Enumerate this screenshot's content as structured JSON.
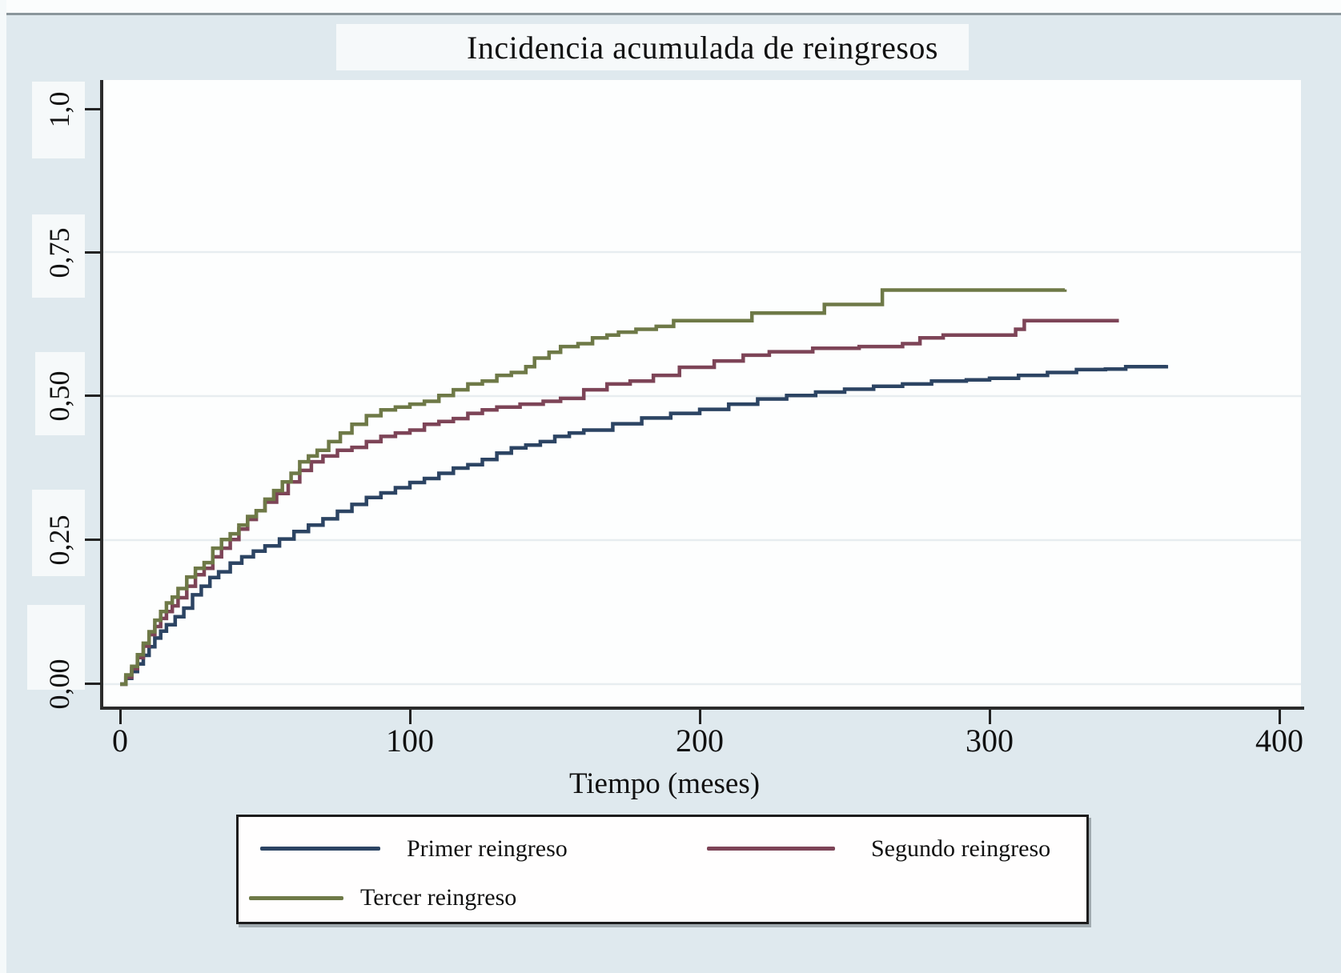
{
  "figure": {
    "title": "Incidencia acumulada de reingresos",
    "x_axis_label": "Tiempo (meses)",
    "legend_entries": [
      "Primer reingreso",
      "Segundo reingreso",
      "Tercer reingreso"
    ]
  },
  "chart_data": {
    "type": "line",
    "subtype": "step-cumulative-incidence",
    "title": "Incidencia acumulada de reingresos",
    "xlabel": "Tiempo (meses)",
    "ylabel": "",
    "xlim": [
      0,
      408
    ],
    "ylim": [
      0,
      1.0
    ],
    "x_ticks": [
      0,
      100,
      200,
      300,
      400
    ],
    "x_tick_labels": [
      "0",
      "100",
      "200",
      "300",
      "400"
    ],
    "y_ticks": [
      0,
      0.25,
      0.5,
      0.75,
      1.0
    ],
    "y_tick_labels": [
      "0,00",
      "0,25",
      "0,50",
      "0,75",
      "1,0"
    ],
    "grid": "horizontal",
    "grid_color": "#e7edf0",
    "background_color": "#dfe9ee",
    "plot_background": "#fdfefe",
    "legend_position": "bottom",
    "series": [
      {
        "name": "Primer reingreso",
        "color": "#2c4463",
        "points": [
          [
            0,
            0
          ],
          [
            2,
            0.01
          ],
          [
            4,
            0.022
          ],
          [
            6,
            0.035
          ],
          [
            8,
            0.05
          ],
          [
            10,
            0.065
          ],
          [
            12,
            0.08
          ],
          [
            14,
            0.092
          ],
          [
            16,
            0.103
          ],
          [
            19,
            0.117
          ],
          [
            22,
            0.132
          ],
          [
            25,
            0.155
          ],
          [
            28,
            0.17
          ],
          [
            31,
            0.185
          ],
          [
            34,
            0.195
          ],
          [
            38,
            0.21
          ],
          [
            42,
            0.221
          ],
          [
            46,
            0.231
          ],
          [
            50,
            0.24
          ],
          [
            55,
            0.252
          ],
          [
            60,
            0.265
          ],
          [
            65,
            0.276
          ],
          [
            70,
            0.287
          ],
          [
            75,
            0.3
          ],
          [
            80,
            0.312
          ],
          [
            85,
            0.324
          ],
          [
            90,
            0.332
          ],
          [
            95,
            0.341
          ],
          [
            100,
            0.35
          ],
          [
            105,
            0.357
          ],
          [
            110,
            0.366
          ],
          [
            115,
            0.375
          ],
          [
            120,
            0.381
          ],
          [
            125,
            0.39
          ],
          [
            130,
            0.401
          ],
          [
            135,
            0.41
          ],
          [
            140,
            0.415
          ],
          [
            145,
            0.421
          ],
          [
            150,
            0.43
          ],
          [
            155,
            0.436
          ],
          [
            160,
            0.441
          ],
          [
            170,
            0.452
          ],
          [
            180,
            0.462
          ],
          [
            190,
            0.47
          ],
          [
            200,
            0.477
          ],
          [
            210,
            0.486
          ],
          [
            220,
            0.495
          ],
          [
            230,
            0.501
          ],
          [
            240,
            0.507
          ],
          [
            250,
            0.512
          ],
          [
            260,
            0.517
          ],
          [
            270,
            0.521
          ],
          [
            280,
            0.526
          ],
          [
            292,
            0.528
          ],
          [
            300,
            0.531
          ],
          [
            310,
            0.536
          ],
          [
            320,
            0.541
          ],
          [
            330,
            0.546
          ],
          [
            340,
            0.547
          ],
          [
            347,
            0.551
          ],
          [
            361,
            0.554
          ]
        ]
      },
      {
        "name": "Segundo reingreso",
        "color": "#7d4457",
        "points": [
          [
            0,
            0
          ],
          [
            2,
            0.012
          ],
          [
            4,
            0.027
          ],
          [
            6,
            0.046
          ],
          [
            8,
            0.066
          ],
          [
            10,
            0.086
          ],
          [
            12,
            0.1
          ],
          [
            14,
            0.114
          ],
          [
            16,
            0.126
          ],
          [
            18,
            0.136
          ],
          [
            20,
            0.15
          ],
          [
            23,
            0.17
          ],
          [
            26,
            0.19
          ],
          [
            29,
            0.201
          ],
          [
            32,
            0.221
          ],
          [
            35,
            0.236
          ],
          [
            38,
            0.251
          ],
          [
            41,
            0.269
          ],
          [
            44,
            0.286
          ],
          [
            47,
            0.301
          ],
          [
            50,
            0.316
          ],
          [
            54,
            0.331
          ],
          [
            58,
            0.351
          ],
          [
            62,
            0.371
          ],
          [
            66,
            0.386
          ],
          [
            70,
            0.396
          ],
          [
            75,
            0.406
          ],
          [
            80,
            0.411
          ],
          [
            85,
            0.421
          ],
          [
            90,
            0.43
          ],
          [
            95,
            0.436
          ],
          [
            100,
            0.441
          ],
          [
            105,
            0.451
          ],
          [
            110,
            0.456
          ],
          [
            115,
            0.461
          ],
          [
            120,
            0.47
          ],
          [
            125,
            0.476
          ],
          [
            130,
            0.481
          ],
          [
            138,
            0.486
          ],
          [
            146,
            0.491
          ],
          [
            152,
            0.496
          ],
          [
            160,
            0.511
          ],
          [
            168,
            0.521
          ],
          [
            176,
            0.526
          ],
          [
            184,
            0.536
          ],
          [
            193,
            0.55
          ],
          [
            205,
            0.561
          ],
          [
            215,
            0.571
          ],
          [
            224,
            0.577
          ],
          [
            239,
            0.583
          ],
          [
            255,
            0.586
          ],
          [
            270,
            0.591
          ],
          [
            276,
            0.601
          ],
          [
            284,
            0.606
          ],
          [
            309,
            0.616
          ],
          [
            312,
            0.631
          ],
          [
            344,
            0.634
          ]
        ]
      },
      {
        "name": "Tercer reingreso",
        "color": "#6e7947",
        "points": [
          [
            0,
            0
          ],
          [
            2,
            0.016
          ],
          [
            4,
            0.031
          ],
          [
            6,
            0.051
          ],
          [
            8,
            0.071
          ],
          [
            10,
            0.091
          ],
          [
            12,
            0.111
          ],
          [
            14,
            0.126
          ],
          [
            16,
            0.141
          ],
          [
            18,
            0.151
          ],
          [
            20,
            0.166
          ],
          [
            23,
            0.186
          ],
          [
            26,
            0.201
          ],
          [
            29,
            0.211
          ],
          [
            32,
            0.236
          ],
          [
            35,
            0.251
          ],
          [
            38,
            0.261
          ],
          [
            41,
            0.276
          ],
          [
            44,
            0.291
          ],
          [
            47,
            0.301
          ],
          [
            50,
            0.321
          ],
          [
            53,
            0.336
          ],
          [
            56,
            0.351
          ],
          [
            59,
            0.366
          ],
          [
            62,
            0.386
          ],
          [
            65,
            0.396
          ],
          [
            68,
            0.406
          ],
          [
            72,
            0.421
          ],
          [
            76,
            0.436
          ],
          [
            80,
            0.451
          ],
          [
            85,
            0.466
          ],
          [
            90,
            0.476
          ],
          [
            95,
            0.481
          ],
          [
            100,
            0.486
          ],
          [
            105,
            0.491
          ],
          [
            110,
            0.501
          ],
          [
            115,
            0.511
          ],
          [
            120,
            0.521
          ],
          [
            125,
            0.526
          ],
          [
            130,
            0.536
          ],
          [
            135,
            0.541
          ],
          [
            140,
            0.551
          ],
          [
            143,
            0.566
          ],
          [
            148,
            0.576
          ],
          [
            152,
            0.586
          ],
          [
            158,
            0.591
          ],
          [
            163,
            0.601
          ],
          [
            168,
            0.606
          ],
          [
            172,
            0.611
          ],
          [
            178,
            0.616
          ],
          [
            185,
            0.621
          ],
          [
            191,
            0.631
          ],
          [
            218,
            0.644
          ],
          [
            243,
            0.659
          ],
          [
            263,
            0.684
          ],
          [
            326,
            0.685
          ]
        ]
      }
    ]
  }
}
